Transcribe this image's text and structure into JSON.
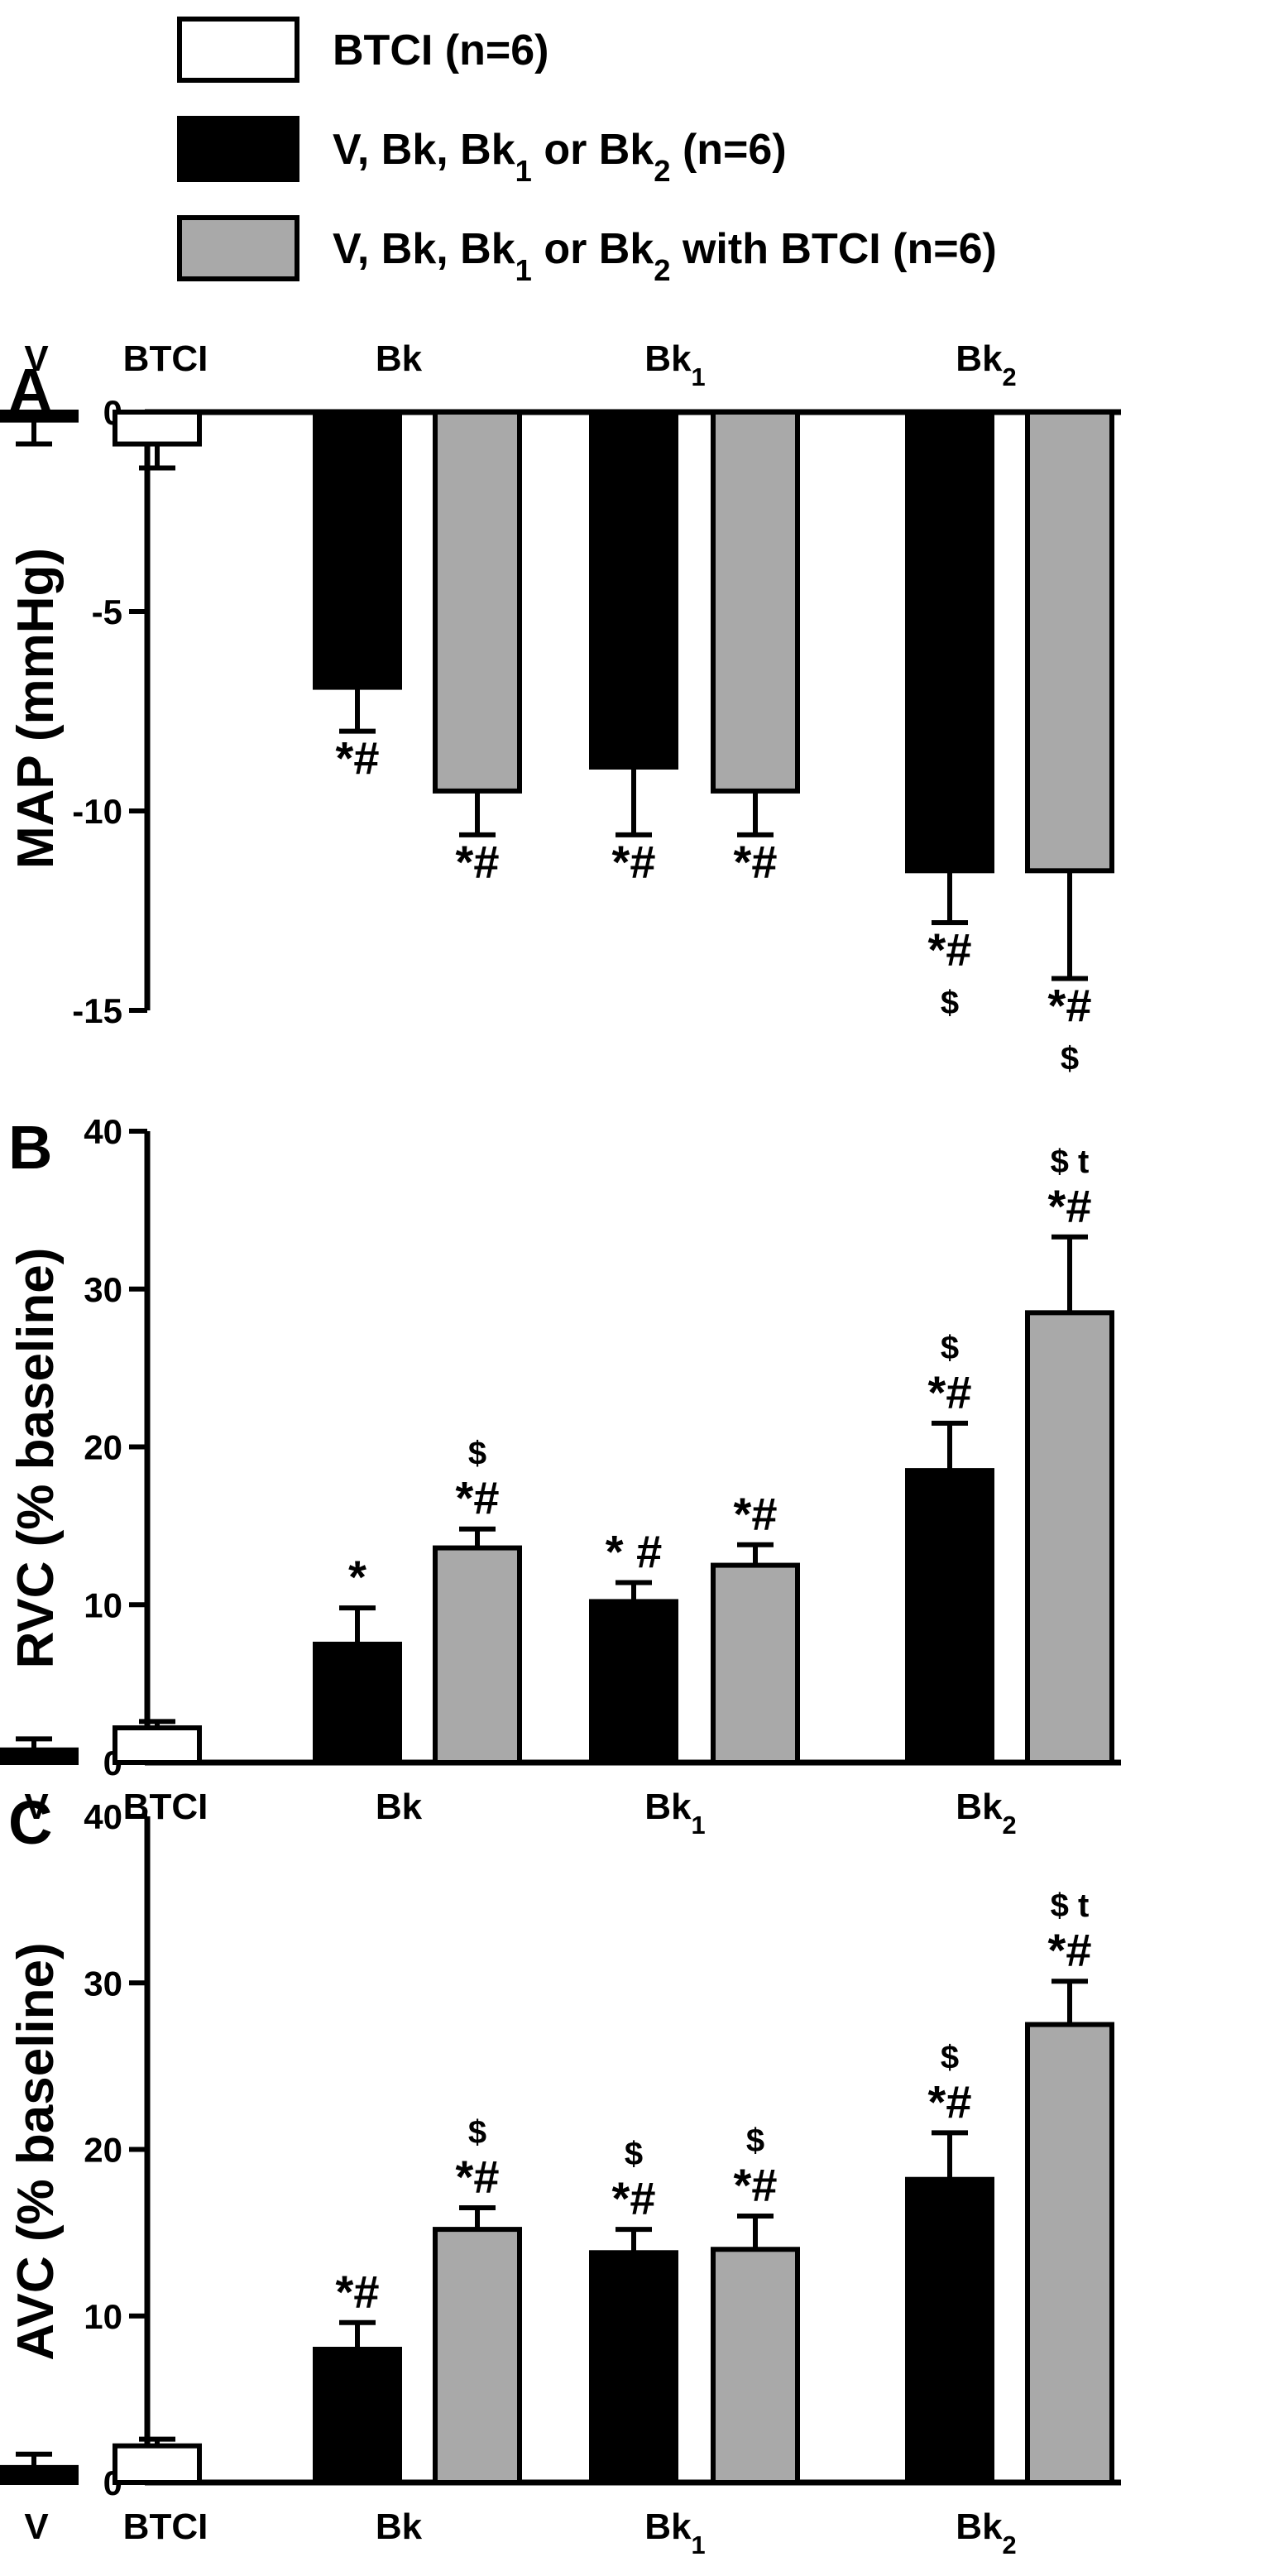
{
  "legend": [
    {
      "label": "BTCI (n=6)",
      "fill": "#ffffff"
    },
    {
      "label": "V, Bk, Bk",
      "sub": "1",
      "mid": " or Bk",
      "sub2": "2",
      "tail": " (n=6)",
      "fill": "#000000"
    },
    {
      "label": "V, Bk, Bk",
      "sub": "1",
      "mid": " or Bk",
      "sub2": "2",
      "tail": " with BTCI (n=6)",
      "fill": "#a9a9a9"
    }
  ],
  "colors": {
    "btci": "#ffffff",
    "agonist": "#000000",
    "combo": "#a9a9a9",
    "stroke": "#000000"
  },
  "categories": [
    {
      "text": "V",
      "sub": ""
    },
    {
      "text": "BTCI",
      "sub": ""
    },
    {
      "text": "Bk",
      "sub": ""
    },
    {
      "text": "Bk",
      "sub": "1"
    },
    {
      "text": "Bk",
      "sub": "2"
    }
  ],
  "chart_data": [
    {
      "type": "bar",
      "panel": "A",
      "title": "",
      "xlabel": "",
      "ylabel": "MAP (mmHg)",
      "ylim": [
        -15,
        0
      ],
      "yticks": [
        "0",
        "-5",
        "-10",
        "-15"
      ],
      "category_labels_position": "top",
      "bars": [
        {
          "group": "V",
          "series": "V, Bk, Bk1 or Bk2",
          "value": -0.2,
          "error": 0.6,
          "annotations": []
        },
        {
          "group": "BTCI",
          "series": "BTCI",
          "value": -0.8,
          "error": 0.6,
          "annotations": []
        },
        {
          "group": "Bk",
          "series": "V, Bk, Bk1 or Bk2",
          "value": -6.9,
          "error": 1.1,
          "annotations": [
            "*#"
          ]
        },
        {
          "group": "Bk",
          "series": "V, Bk, Bk1 or Bk2 with BTCI",
          "value": -9.5,
          "error": 1.1,
          "annotations": [
            "*#"
          ]
        },
        {
          "group": "Bk1",
          "series": "V, Bk, Bk1 or Bk2",
          "value": -8.9,
          "error": 1.7,
          "annotations": [
            "*#"
          ]
        },
        {
          "group": "Bk1",
          "series": "V, Bk, Bk1 or Bk2 with BTCI",
          "value": -9.5,
          "error": 1.1,
          "annotations": [
            "*#"
          ]
        },
        {
          "group": "Bk2",
          "series": "V, Bk, Bk1 or Bk2",
          "value": -11.5,
          "error": 1.3,
          "annotations": [
            "*#",
            "$"
          ]
        },
        {
          "group": "Bk2",
          "series": "V, Bk, Bk1 or Bk2 with BTCI",
          "value": -11.5,
          "error": 2.7,
          "annotations": [
            "*#",
            "$"
          ]
        }
      ]
    },
    {
      "type": "bar",
      "panel": "B",
      "title": "",
      "xlabel": "",
      "ylabel": "RVC (% baseline)",
      "ylim": [
        0,
        40
      ],
      "yticks": [
        "0",
        "10",
        "20",
        "30",
        "40"
      ],
      "category_labels_position": "bottom",
      "bars": [
        {
          "group": "V",
          "series": "V, Bk, Bk1 or Bk2",
          "value": 0.8,
          "error": 0.7,
          "annotations": []
        },
        {
          "group": "BTCI",
          "series": "BTCI",
          "value": 2.2,
          "error": 0.4,
          "annotations": []
        },
        {
          "group": "Bk",
          "series": "V, Bk, Bk1 or Bk2",
          "value": 7.5,
          "error": 2.3,
          "annotations": [
            "*"
          ]
        },
        {
          "group": "Bk",
          "series": "V, Bk, Bk1 or Bk2 with BTCI",
          "value": 13.6,
          "error": 1.2,
          "annotations": [
            "*#",
            "$"
          ]
        },
        {
          "group": "Bk1",
          "series": "V, Bk, Bk1 or Bk2",
          "value": 10.2,
          "error": 1.2,
          "annotations": [
            "* #"
          ]
        },
        {
          "group": "Bk1",
          "series": "V, Bk, Bk1 or Bk2 with BTCI",
          "value": 12.5,
          "error": 1.3,
          "annotations": [
            "*#"
          ]
        },
        {
          "group": "Bk2",
          "series": "V, Bk, Bk1 or Bk2",
          "value": 18.5,
          "error": 3.0,
          "annotations": [
            "*#",
            "$"
          ]
        },
        {
          "group": "Bk2",
          "series": "V, Bk, Bk1 or Bk2 with BTCI",
          "value": 28.5,
          "error": 4.8,
          "annotations": [
            "*#",
            "$ t"
          ]
        }
      ]
    },
    {
      "type": "bar",
      "panel": "C",
      "title": "",
      "xlabel": "",
      "ylabel": "AVC (% baseline)",
      "ylim": [
        0,
        40
      ],
      "yticks": [
        "0",
        "10",
        "20",
        "30",
        "40"
      ],
      "category_labels_position": "bottom",
      "bars": [
        {
          "group": "V",
          "series": "V, Bk, Bk1 or Bk2",
          "value": 0.9,
          "error": 0.8,
          "annotations": []
        },
        {
          "group": "BTCI",
          "series": "BTCI",
          "value": 2.2,
          "error": 0.4,
          "annotations": []
        },
        {
          "group": "Bk",
          "series": "V, Bk, Bk1 or Bk2",
          "value": 8.0,
          "error": 1.6,
          "annotations": [
            "*#"
          ]
        },
        {
          "group": "Bk",
          "series": "V, Bk, Bk1 or Bk2 with BTCI",
          "value": 15.2,
          "error": 1.3,
          "annotations": [
            "*#",
            "$"
          ]
        },
        {
          "group": "Bk1",
          "series": "V, Bk, Bk1 or Bk2",
          "value": 13.8,
          "error": 1.4,
          "annotations": [
            "*#",
            "$"
          ]
        },
        {
          "group": "Bk1",
          "series": "V, Bk, Bk1 or Bk2 with BTCI",
          "value": 14.0,
          "error": 2.0,
          "annotations": [
            "*#",
            "$"
          ]
        },
        {
          "group": "Bk2",
          "series": "V, Bk, Bk1 or Bk2",
          "value": 18.2,
          "error": 2.8,
          "annotations": [
            "*#",
            "$"
          ]
        },
        {
          "group": "Bk2",
          "series": "V, Bk, Bk1 or Bk2 with BTCI",
          "value": 27.5,
          "error": 2.6,
          "annotations": [
            "*#",
            "$ t"
          ]
        }
      ]
    }
  ]
}
